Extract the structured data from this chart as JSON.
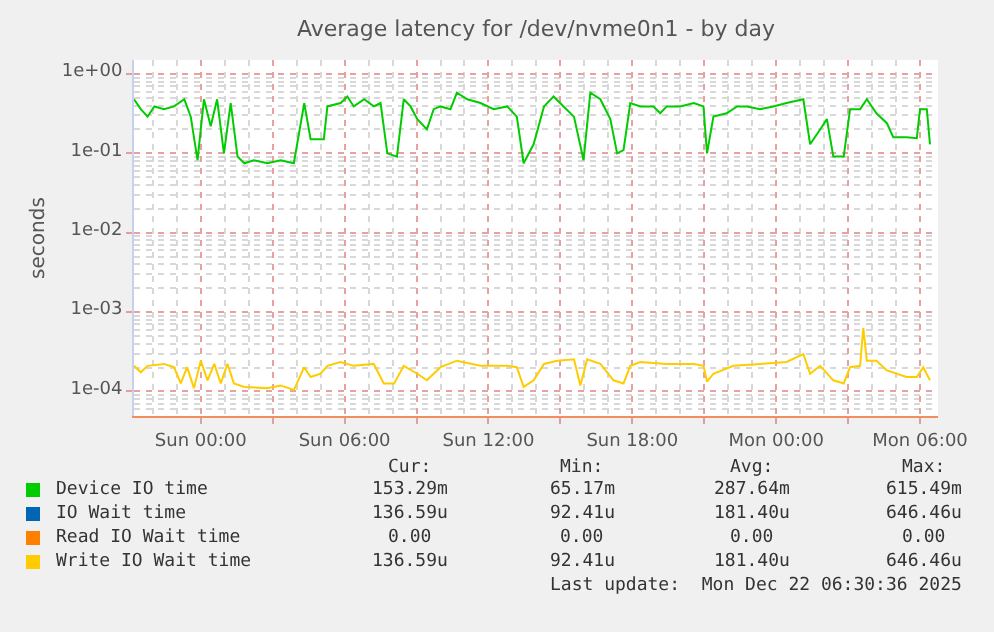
{
  "chart_data": {
    "type": "line",
    "title": "Average latency for /dev/nvme0n1 - by day",
    "ylabel": "seconds",
    "log": "y",
    "grid": true,
    "legend": "bottom",
    "line_style": "solid",
    "marker": "none",
    "xlim": [
      "2025-12-20T21:13",
      "2025-12-22T06:45"
    ],
    "xticks": [
      {
        "value": "2025-12-21T00:00",
        "label": "Sun 00:00"
      },
      {
        "value": "2025-12-21T03:00",
        "label": null
      },
      {
        "value": "2025-12-21T06:00",
        "label": "Sun 06:00"
      },
      {
        "value": "2025-12-21T09:00",
        "label": null
      },
      {
        "value": "2025-12-21T12:00",
        "label": "Sun 12:00"
      },
      {
        "value": "2025-12-21T15:00",
        "label": null
      },
      {
        "value": "2025-12-21T18:00",
        "label": "Sun 18:00"
      },
      {
        "value": "2025-12-21T21:00",
        "label": null
      },
      {
        "value": "2025-12-22T00:00",
        "label": "Mon 00:00"
      },
      {
        "value": "2025-12-22T03:00",
        "label": null
      },
      {
        "value": "2025-12-22T06:00",
        "label": "Mon 06:00"
      }
    ],
    "ylim": [
      4.9e-05,
      1.5
    ],
    "yticks": [
      {
        "value": 1,
        "label": "1e+00"
      },
      {
        "value": 0.1,
        "label": "1e-01"
      },
      {
        "value": 0.01,
        "label": "1e-02"
      },
      {
        "value": 0.001,
        "label": "1e-03"
      },
      {
        "value": 0.0001,
        "label": "1e-04"
      }
    ],
    "series": [
      {
        "name": "Device IO time",
        "color": "#00cc00",
        "x": [
          "2025-12-20T21:13",
          "2025-12-20T21:30",
          "2025-12-20T21:47",
          "2025-12-20T22:04",
          "2025-12-20T22:28",
          "2025-12-20T22:53",
          "2025-12-20T23:19",
          "2025-12-20T23:35",
          "2025-12-20T23:52",
          "2025-12-21T00:08",
          "2025-12-21T00:25",
          "2025-12-21T00:41",
          "2025-12-21T00:58",
          "2025-12-21T01:15",
          "2025-12-21T01:32",
          "2025-12-21T01:49",
          "2025-12-21T02:13",
          "2025-12-21T02:47",
          "2025-12-21T03:20",
          "2025-12-21T03:53",
          "2025-12-21T04:19",
          "2025-12-21T04:35",
          "2025-12-21T05:08",
          "2025-12-21T05:17",
          "2025-12-21T05:50",
          "2025-12-21T06:07",
          "2025-12-21T06:23",
          "2025-12-21T06:49",
          "2025-12-21T07:13",
          "2025-12-21T07:30",
          "2025-12-21T07:47",
          "2025-12-21T08:11",
          "2025-12-21T08:28",
          "2025-12-21T08:45",
          "2025-12-21T09:02",
          "2025-12-21T09:26",
          "2025-12-21T09:43",
          "2025-12-21T10:00",
          "2025-12-21T10:25",
          "2025-12-21T10:41",
          "2025-12-21T11:07",
          "2025-12-21T11:40",
          "2025-12-21T12:13",
          "2025-12-21T12:47",
          "2025-12-21T13:11",
          "2025-12-21T13:28",
          "2025-12-21T13:53",
          "2025-12-21T14:19",
          "2025-12-21T14:43",
          "2025-12-21T15:08",
          "2025-12-21T15:34",
          "2025-12-21T15:58",
          "2025-12-21T16:15",
          "2025-12-21T16:40",
          "2025-12-21T17:05",
          "2025-12-21T17:22",
          "2025-12-21T17:38",
          "2025-12-21T17:55",
          "2025-12-21T18:20",
          "2025-12-21T18:53",
          "2025-12-21T19:10",
          "2025-12-21T19:26",
          "2025-12-21T20:00",
          "2025-12-21T20:34",
          "2025-12-21T20:58",
          "2025-12-21T21:07",
          "2025-12-21T21:23",
          "2025-12-21T21:56",
          "2025-12-21T22:22",
          "2025-12-21T22:47",
          "2025-12-21T23:20",
          "2025-12-21T23:53",
          "2025-12-22T00:26",
          "2025-12-22T01:08",
          "2025-12-22T01:25",
          "2025-12-22T01:50",
          "2025-12-22T02:07",
          "2025-12-22T02:23",
          "2025-12-22T02:49",
          "2025-12-22T03:05",
          "2025-12-22T03:30",
          "2025-12-22T03:47",
          "2025-12-22T04:11",
          "2025-12-22T04:37",
          "2025-12-22T04:53",
          "2025-12-22T05:26",
          "2025-12-22T05:52",
          "2025-12-22T06:00",
          "2025-12-22T06:17",
          "2025-12-22T06:25"
        ],
        "values": [
          0.48,
          0.36,
          0.29,
          0.39,
          0.36,
          0.39,
          0.48,
          0.29,
          0.082,
          0.48,
          0.22,
          0.48,
          0.1,
          0.43,
          0.091,
          0.075,
          0.082,
          0.075,
          0.082,
          0.075,
          0.43,
          0.15,
          0.15,
          0.39,
          0.43,
          0.52,
          0.39,
          0.48,
          0.39,
          0.43,
          0.1,
          0.091,
          0.48,
          0.39,
          0.27,
          0.2,
          0.36,
          0.39,
          0.36,
          0.58,
          0.48,
          0.43,
          0.36,
          0.39,
          0.29,
          0.075,
          0.13,
          0.39,
          0.52,
          0.39,
          0.29,
          0.082,
          0.58,
          0.48,
          0.27,
          0.1,
          0.11,
          0.43,
          0.39,
          0.39,
          0.32,
          0.39,
          0.39,
          0.43,
          0.39,
          0.1,
          0.29,
          0.32,
          0.39,
          0.39,
          0.36,
          0.39,
          0.43,
          0.48,
          0.13,
          0.2,
          0.27,
          0.091,
          0.091,
          0.36,
          0.36,
          0.48,
          0.32,
          0.24,
          0.16,
          0.16,
          0.155,
          0.36,
          0.36,
          0.13
        ]
      },
      {
        "name": "IO Wait time",
        "color": "#0066b3",
        "values": [
          null
        ]
      },
      {
        "name": "Read IO Wait time",
        "color": "#ff8000",
        "values": [
          null
        ]
      },
      {
        "name": "Write IO Wait time",
        "color": "#ffcc00",
        "x": [
          "2025-12-20T21:13",
          "2025-12-20T21:30",
          "2025-12-20T21:47",
          "2025-12-20T22:28",
          "2025-12-20T22:53",
          "2025-12-20T23:10",
          "2025-12-20T23:26",
          "2025-12-20T23:43",
          "2025-12-21T00:00",
          "2025-12-21T00:17",
          "2025-12-21T00:34",
          "2025-12-21T00:50",
          "2025-12-21T01:07",
          "2025-12-21T01:23",
          "2025-12-21T01:49",
          "2025-12-21T02:47",
          "2025-12-21T03:20",
          "2025-12-21T03:53",
          "2025-12-21T04:19",
          "2025-12-21T04:35",
          "2025-12-21T05:00",
          "2025-12-21T05:17",
          "2025-12-21T05:50",
          "2025-12-21T06:23",
          "2025-12-21T07:13",
          "2025-12-21T07:38",
          "2025-12-21T08:04",
          "2025-12-21T08:28",
          "2025-12-21T09:02",
          "2025-12-21T09:26",
          "2025-12-21T10:00",
          "2025-12-21T10:41",
          "2025-12-21T11:40",
          "2025-12-21T12:47",
          "2025-12-21T13:11",
          "2025-12-21T13:28",
          "2025-12-21T13:53",
          "2025-12-21T14:19",
          "2025-12-21T14:52",
          "2025-12-21T15:34",
          "2025-12-21T15:50",
          "2025-12-21T16:07",
          "2025-12-21T16:40",
          "2025-12-21T17:13",
          "2025-12-21T17:38",
          "2025-12-21T17:55",
          "2025-12-21T18:20",
          "2025-12-21T19:26",
          "2025-12-21T20:34",
          "2025-12-21T20:58",
          "2025-12-21T21:07",
          "2025-12-21T21:23",
          "2025-12-21T22:13",
          "2025-12-21T23:20",
          "2025-12-22T00:26",
          "2025-12-22T01:08",
          "2025-12-22T01:25",
          "2025-12-22T01:50",
          "2025-12-22T02:23",
          "2025-12-22T02:49",
          "2025-12-22T03:05",
          "2025-12-22T03:30",
          "2025-12-22T03:38",
          "2025-12-22T03:47",
          "2025-12-22T04:11",
          "2025-12-22T04:37",
          "2025-12-22T05:26",
          "2025-12-22T05:52",
          "2025-12-22T06:08",
          "2025-12-22T06:25"
        ],
        "values": [
          0.00021,
          0.000174,
          0.00021,
          0.000222,
          0.000202,
          0.000126,
          0.000202,
          0.00011,
          0.000244,
          0.000138,
          0.000222,
          0.000126,
          0.000222,
          0.000126,
          0.000114,
          0.00011,
          0.000119,
          0.000104,
          0.000202,
          0.000152,
          0.000167,
          0.00021,
          0.000235,
          0.00021,
          0.000222,
          0.000126,
          0.000126,
          0.00021,
          0.000167,
          0.000138,
          0.000202,
          0.000244,
          0.00021,
          0.00021,
          0.000202,
          0.000114,
          0.000138,
          0.000222,
          0.000244,
          0.000254,
          0.000119,
          0.000254,
          0.000222,
          0.000138,
          0.000126,
          0.00021,
          0.000235,
          0.000222,
          0.000222,
          0.00021,
          0.000133,
          0.000167,
          0.00021,
          0.000222,
          0.000235,
          0.000296,
          0.000167,
          0.00021,
          0.000138,
          0.000126,
          0.000202,
          0.00021,
          0.00063,
          0.000244,
          0.000244,
          0.000184,
          0.000152,
          0.000152,
          0.000202,
          0.000138
        ]
      }
    ],
    "annotations": [
      "Cur:",
      "Min:",
      "Avg:",
      "Max:",
      "153.29m",
      "65.17m",
      "287.64m",
      "615.49m",
      "136.59u",
      "92.41u",
      "181.40u",
      "646.46u",
      "0.00",
      "0.00",
      "0.00",
      "0.00",
      "136.59u",
      "92.41u",
      "181.40u",
      "646.46u",
      "Last update:  Mon Dec 22 06:30:36 2025"
    ]
  }
}
